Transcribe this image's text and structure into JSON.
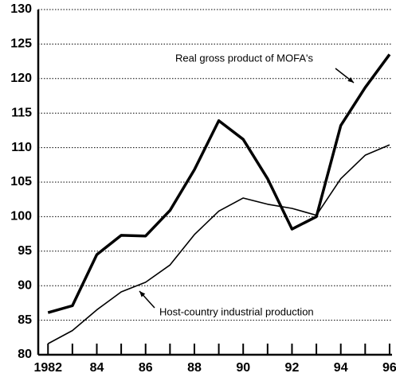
{
  "chart_data": {
    "type": "line",
    "x": [
      1982,
      1983,
      1984,
      1985,
      1986,
      1987,
      1988,
      1989,
      1990,
      1991,
      1992,
      1993,
      1994,
      1995,
      1996
    ],
    "series": [
      {
        "name": "Real gross product of MOFA's",
        "color": "#000000",
        "values": [
          86.1,
          87.1,
          94.5,
          97.3,
          97.2,
          100.9,
          106.8,
          113.9,
          111.2,
          105.5,
          98.2,
          100,
          113.2,
          118.7,
          123.5
        ]
      },
      {
        "name": "Host-country industrial production",
        "color": "#000000",
        "values": [
          81.6,
          83.5,
          86.5,
          89.1,
          90.5,
          93,
          97.4,
          100.8,
          102.7,
          101.8,
          101.2,
          100.2,
          105.5,
          108.9,
          110.4
        ]
      }
    ],
    "xlim": [
      1981.6,
      1996.1
    ],
    "xticks": [
      1982,
      {
        "value": 1984,
        "label": "84"
      },
      {
        "value": 1986,
        "label": "86"
      },
      {
        "value": 1988,
        "label": "88"
      },
      {
        "value": 1990,
        "label": "90"
      },
      {
        "value": 1992,
        "label": "92"
      },
      {
        "value": 1994,
        "label": "94"
      },
      {
        "value": 1996,
        "label": "96"
      }
    ],
    "xminor": [
      1983,
      1985,
      1987,
      1989,
      1991,
      1993,
      1995
    ],
    "ylim": [
      80,
      130
    ],
    "yticks": [
      80,
      85,
      90,
      95,
      100,
      105,
      110,
      115,
      120,
      125,
      130
    ],
    "grid": true
  }
}
